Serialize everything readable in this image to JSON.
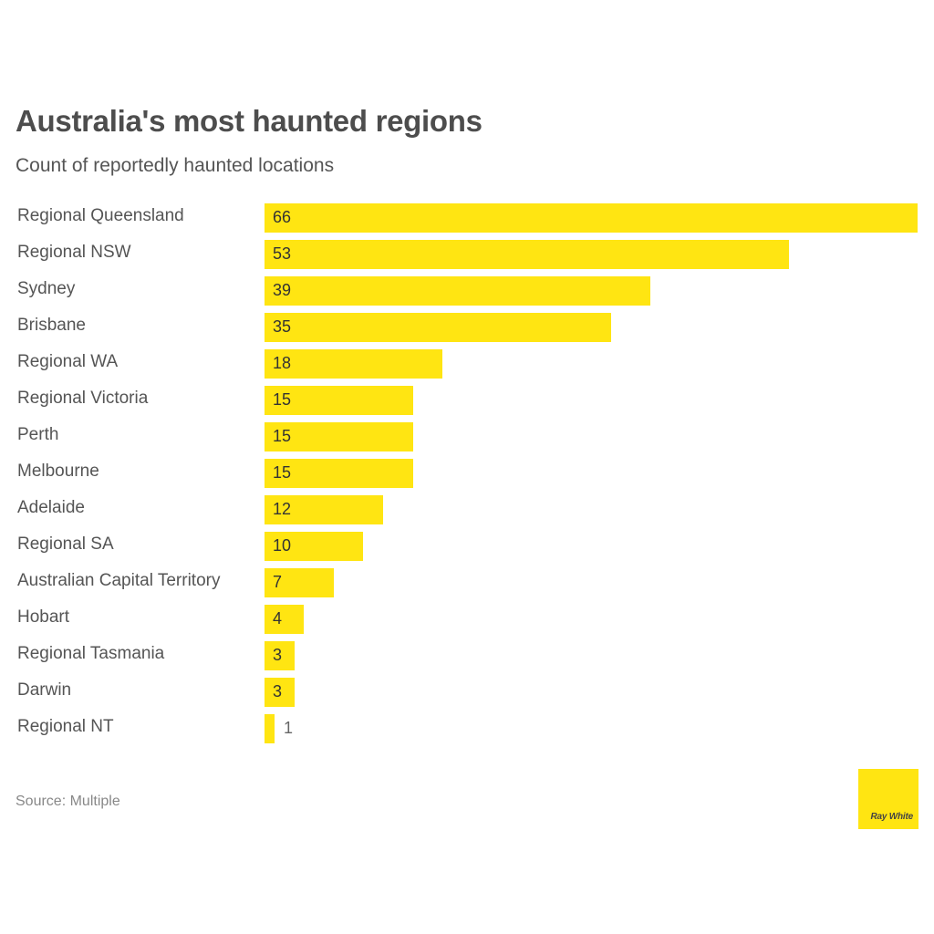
{
  "header": {
    "title": "Australia's most haunted regions",
    "subtitle": "Count of reportedly haunted locations"
  },
  "footer": {
    "source": "Source: Multiple",
    "logo_text": "Ray White"
  },
  "colors": {
    "bar": "#ffe512",
    "title": "#4d4d4d",
    "label": "#555555",
    "source": "#888888"
  },
  "chart_data": {
    "type": "bar",
    "orientation": "horizontal",
    "title": "Australia's most haunted regions",
    "subtitle": "Count of reportedly haunted locations",
    "xlabel": "",
    "ylabel": "",
    "categories": [
      "Regional Queensland",
      "Regional NSW",
      "Sydney",
      "Brisbane",
      "Regional WA",
      "Regional Victoria",
      "Perth",
      "Melbourne",
      "Adelaide",
      "Regional SA",
      "Australian Capital Territory",
      "Hobart",
      "Regional Tasmania",
      "Darwin",
      "Regional NT"
    ],
    "values": [
      66,
      53,
      39,
      35,
      18,
      15,
      15,
      15,
      12,
      10,
      7,
      4,
      3,
      3,
      1
    ],
    "xlim": [
      0,
      66
    ],
    "grid": false,
    "legend": null,
    "data_labels": true,
    "source": "Source: Multiple"
  },
  "rows": [
    {
      "label": "Regional Queensland",
      "value": "66"
    },
    {
      "label": "Regional NSW",
      "value": "53"
    },
    {
      "label": "Sydney",
      "value": "39"
    },
    {
      "label": "Brisbane",
      "value": "35"
    },
    {
      "label": "Regional WA",
      "value": "18"
    },
    {
      "label": "Regional Victoria",
      "value": "15"
    },
    {
      "label": "Perth",
      "value": "15"
    },
    {
      "label": "Melbourne",
      "value": "15"
    },
    {
      "label": "Adelaide",
      "value": "12"
    },
    {
      "label": "Regional SA",
      "value": "10"
    },
    {
      "label": "Australian Capital Territory",
      "value": "7"
    },
    {
      "label": "Hobart",
      "value": "4"
    },
    {
      "label": "Regional Tasmania",
      "value": "3"
    },
    {
      "label": "Darwin",
      "value": "3"
    },
    {
      "label": "Regional NT",
      "value": "1"
    }
  ]
}
